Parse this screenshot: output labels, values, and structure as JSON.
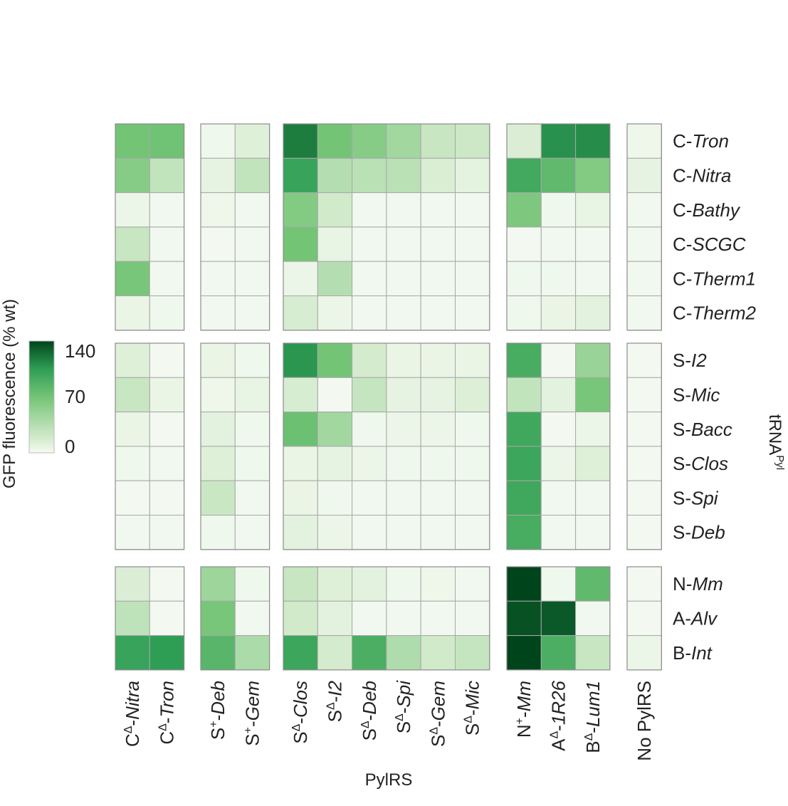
{
  "chart_data": {
    "type": "heatmap",
    "xlabel": "PylRS",
    "ylabel": "tRNA",
    "ylabel_sup": "Pyl",
    "colorbar": {
      "label": "GFP fluorescence (% wt)",
      "ticks": [
        "140",
        "70",
        "0"
      ],
      "range": [
        0,
        140
      ],
      "colors": [
        "#f5faf3",
        "#d6eccf",
        "#74c476",
        "#2e9e55",
        "#00441b"
      ]
    },
    "columns": [
      {
        "pre": "C",
        "sup": "Δ",
        "name": "Nitra"
      },
      {
        "pre": "C",
        "sup": "Δ",
        "name": "Tron"
      },
      {
        "pre": "S",
        "sup": "+",
        "name": "Deb"
      },
      {
        "pre": "S",
        "sup": "+",
        "name": "Gem"
      },
      {
        "pre": "S",
        "sup": "Δ",
        "name": "Clos"
      },
      {
        "pre": "S",
        "sup": "Δ",
        "name": "I2"
      },
      {
        "pre": "S",
        "sup": "Δ",
        "name": "Deb"
      },
      {
        "pre": "S",
        "sup": "Δ",
        "name": "Spi"
      },
      {
        "pre": "S",
        "sup": "Δ",
        "name": "Gem"
      },
      {
        "pre": "S",
        "sup": "Δ",
        "name": "Mic"
      },
      {
        "pre": "N",
        "sup": "+",
        "name": "Mm"
      },
      {
        "pre": "A",
        "sup": "Δ",
        "name": "1R26"
      },
      {
        "pre": "B",
        "sup": "Δ",
        "name": "Lum1"
      },
      {
        "pre": "",
        "sup": "",
        "name": "No PylRS"
      }
    ],
    "column_groups": [
      [
        0,
        1
      ],
      [
        2,
        3
      ],
      [
        4,
        5,
        6,
        7,
        8,
        9
      ],
      [
        10,
        11,
        12
      ],
      [
        13
      ]
    ],
    "rows": [
      {
        "pre": "C",
        "name": "Tron"
      },
      {
        "pre": "C",
        "name": "Nitra"
      },
      {
        "pre": "C",
        "name": "Bathy"
      },
      {
        "pre": "C",
        "name": "SCGC"
      },
      {
        "pre": "C",
        "name": "Therm1"
      },
      {
        "pre": "C",
        "name": "Therm2"
      },
      {
        "pre": "S",
        "name": "I2"
      },
      {
        "pre": "S",
        "name": "Mic"
      },
      {
        "pre": "S",
        "name": "Bacc"
      },
      {
        "pre": "S",
        "name": "Clos"
      },
      {
        "pre": "S",
        "name": "Spi"
      },
      {
        "pre": "S",
        "name": "Deb"
      },
      {
        "pre": "N",
        "name": "Mm"
      },
      {
        "pre": "A",
        "name": "Alv"
      },
      {
        "pre": "B",
        "name": "Int"
      }
    ],
    "row_groups": [
      [
        0,
        1,
        2,
        3,
        4,
        5
      ],
      [
        6,
        7,
        8,
        9,
        10,
        11
      ],
      [
        12,
        13,
        14
      ]
    ],
    "values": [
      [
        70,
        72,
        3,
        12,
        118,
        70,
        60,
        45,
        25,
        22,
        14,
        110,
        112,
        4
      ],
      [
        60,
        28,
        8,
        28,
        100,
        35,
        32,
        32,
        15,
        9,
        95,
        80,
        62,
        8
      ],
      [
        5,
        2,
        4,
        2,
        62,
        20,
        2,
        2,
        2,
        2,
        65,
        3,
        7,
        2
      ],
      [
        25,
        2,
        1,
        2,
        70,
        7,
        2,
        2,
        2,
        2,
        1,
        2,
        2,
        2
      ],
      [
        68,
        2,
        2,
        2,
        5,
        35,
        2,
        2,
        2,
        2,
        3,
        3,
        2,
        2
      ],
      [
        6,
        3,
        2,
        2,
        16,
        5,
        2,
        2,
        2,
        2,
        3,
        6,
        10,
        2
      ],
      [
        12,
        1,
        6,
        3,
        108,
        70,
        18,
        6,
        6,
        6,
        92,
        1,
        50,
        1
      ],
      [
        25,
        6,
        4,
        7,
        16,
        1,
        26,
        8,
        8,
        13,
        28,
        10,
        68,
        1
      ],
      [
        6,
        1,
        10,
        3,
        74,
        45,
        3,
        5,
        5,
        3,
        96,
        1,
        5,
        1
      ],
      [
        3,
        2,
        12,
        3,
        6,
        8,
        5,
        3,
        3,
        3,
        98,
        5,
        12,
        1
      ],
      [
        1,
        1,
        24,
        2,
        6,
        3,
        2,
        2,
        2,
        2,
        96,
        2,
        2,
        1
      ],
      [
        2,
        2,
        3,
        2,
        10,
        5,
        2,
        2,
        2,
        2,
        92,
        2,
        2,
        1
      ],
      [
        14,
        1,
        48,
        3,
        25,
        12,
        10,
        3,
        4,
        2,
        140,
        3,
        80,
        1
      ],
      [
        30,
        1,
        68,
        2,
        20,
        10,
        2,
        2,
        2,
        2,
        135,
        132,
        2,
        1
      ],
      [
        100,
        105,
        84,
        40,
        98,
        18,
        90,
        38,
        20,
        26,
        160,
        90,
        25,
        5
      ]
    ]
  }
}
